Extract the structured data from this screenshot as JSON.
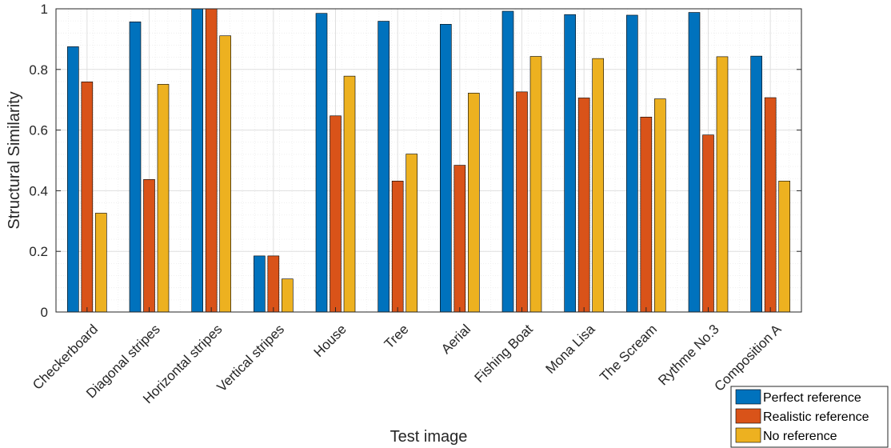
{
  "chart_data": {
    "type": "bar",
    "title": "",
    "xlabel": "Test image",
    "ylabel": "Structural Similarity",
    "ylim": [
      0,
      1
    ],
    "yticks": [
      "0",
      "0.2",
      "0.4",
      "0.6",
      "0.8",
      "1"
    ],
    "grid": true,
    "legend": "bottom-right outside",
    "categories": [
      "Checkerboard",
      "Diagonal stripes",
      "Horizontal stripes",
      "Vertical stripes",
      "House",
      "Tree",
      "Aerial",
      "Fishing Boat",
      "Mona Lisa",
      "The Scream",
      "Rythme No.3",
      "Composition A"
    ],
    "series": [
      {
        "name": "Perfect reference",
        "color": "#0072BD",
        "values": [
          0.875,
          0.957,
          1.0,
          0.185,
          0.985,
          0.959,
          0.949,
          0.992,
          0.981,
          0.979,
          0.988,
          0.844
        ]
      },
      {
        "name": "Realistic reference",
        "color": "#D95319",
        "values": [
          0.759,
          0.437,
          1.0,
          0.185,
          0.647,
          0.432,
          0.484,
          0.726,
          0.706,
          0.643,
          0.584,
          0.707
        ]
      },
      {
        "name": "No reference",
        "color": "#EDB120",
        "values": [
          0.326,
          0.751,
          0.911,
          0.109,
          0.778,
          0.521,
          0.722,
          0.843,
          0.836,
          0.703,
          0.842,
          0.432
        ]
      }
    ]
  }
}
